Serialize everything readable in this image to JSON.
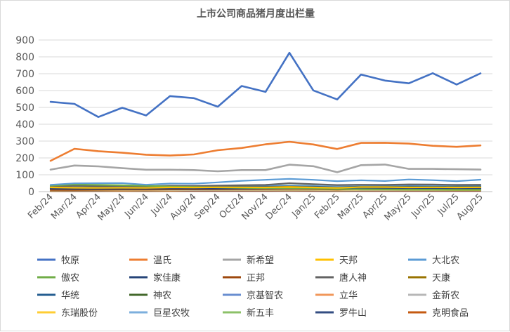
{
  "chart_data": {
    "type": "line",
    "title": "上市公司商品猪月度出栏量",
    "xlabel": "",
    "ylabel": "",
    "ylim": [
      0,
      900
    ],
    "yticks": [
      0,
      100,
      200,
      300,
      400,
      500,
      600,
      700,
      800,
      900
    ],
    "grid": "horizontal",
    "legend_position": "bottom",
    "categories": [
      "Feb/24",
      "Mar/24",
      "Apr/24",
      "May/24",
      "Jun/24",
      "Jul/24",
      "Aug/24",
      "Sep/24",
      "Oct/24",
      "Nov/24",
      "Dec/24",
      "Jan/25",
      "Feb/25",
      "Mar/25",
      "Apr/25",
      "May/25",
      "Jun/25",
      "Jul/25",
      "Aug/25"
    ],
    "series": [
      {
        "name": "牧原",
        "color": "#4472C4",
        "values": [
          533,
          521,
          443,
          498,
          452,
          567,
          555,
          504,
          627,
          592,
          824,
          601,
          547,
          695,
          659,
          643,
          703,
          636,
          702
        ]
      },
      {
        "name": "温氏",
        "color": "#ED7D31",
        "values": [
          183,
          254,
          240,
          231,
          219,
          214,
          221,
          246,
          259,
          281,
          296,
          280,
          253,
          289,
          290,
          285,
          272,
          266,
          274
        ]
      },
      {
        "name": "新希望",
        "color": "#A5A5A5",
        "values": [
          131,
          155,
          150,
          139,
          130,
          130,
          128,
          121,
          128,
          128,
          160,
          151,
          115,
          157,
          161,
          135,
          135,
          133,
          131
        ]
      },
      {
        "name": "天邦",
        "color": "#FFC000",
        "values": [
          25,
          23,
          22,
          23,
          22,
          25,
          24,
          26,
          26,
          25,
          27,
          25,
          22,
          27,
          27,
          25,
          26,
          25,
          26
        ]
      },
      {
        "name": "大北农",
        "color": "#5B9BD5",
        "values": [
          40,
          49,
          50,
          51,
          41,
          48,
          47,
          55,
          64,
          70,
          76,
          70,
          62,
          67,
          63,
          72,
          68,
          62,
          71
        ]
      },
      {
        "name": "傲农",
        "color": "#70AD47",
        "values": [
          36,
          42,
          40,
          38,
          35,
          30,
          28,
          25,
          22,
          20,
          20,
          18,
          15,
          14,
          13,
          12,
          12,
          11,
          11
        ]
      },
      {
        "name": "家佳康",
        "color": "#264478",
        "values": [
          17,
          16,
          16,
          17,
          17,
          18,
          18,
          17,
          18,
          19,
          20,
          20,
          17,
          19,
          18,
          19,
          19,
          18,
          18
        ]
      },
      {
        "name": "正邦",
        "color": "#9E480E",
        "values": [
          10,
          10,
          11,
          12,
          12,
          13,
          13,
          14,
          15,
          15,
          17,
          15,
          12,
          16,
          16,
          16,
          17,
          16,
          17
        ]
      },
      {
        "name": "唐人神",
        "color": "#636363",
        "values": [
          28,
          35,
          33,
          35,
          32,
          35,
          34,
          36,
          38,
          40,
          50,
          44,
          39,
          41,
          40,
          43,
          42,
          40,
          41
        ]
      },
      {
        "name": "天康",
        "color": "#997300",
        "values": [
          20,
          22,
          21,
          22,
          21,
          22,
          22,
          23,
          24,
          25,
          29,
          24,
          21,
          24,
          24,
          25,
          24,
          23,
          24
        ]
      },
      {
        "name": "华统",
        "color": "#255E91",
        "values": [
          22,
          24,
          25,
          26,
          24,
          26,
          27,
          28,
          29,
          30,
          31,
          30,
          26,
          30,
          30,
          31,
          30,
          30,
          31
        ]
      },
      {
        "name": "神农",
        "color": "#43682B",
        "values": [
          17,
          19,
          18,
          19,
          18,
          20,
          20,
          21,
          21,
          22,
          23,
          22,
          19,
          22,
          22,
          23,
          23,
          22,
          23
        ]
      },
      {
        "name": "京基智农",
        "color": "#698ED0",
        "values": [
          14,
          15,
          16,
          16,
          15,
          16,
          16,
          17,
          17,
          17,
          18,
          17,
          15,
          17,
          17,
          17,
          17,
          16,
          17
        ]
      },
      {
        "name": "立华",
        "color": "#F1975A",
        "values": [
          11,
          12,
          12,
          13,
          12,
          13,
          13,
          13,
          14,
          14,
          15,
          14,
          12,
          14,
          14,
          14,
          14,
          14,
          14
        ]
      },
      {
        "name": "金新农",
        "color": "#B7B7B7",
        "values": [
          9,
          10,
          10,
          10,
          10,
          10,
          10,
          11,
          11,
          11,
          12,
          11,
          10,
          11,
          11,
          11,
          11,
          11,
          11
        ]
      },
      {
        "name": "东瑞股份",
        "color": "#FFCD33",
        "values": [
          7,
          8,
          8,
          8,
          8,
          8,
          9,
          9,
          9,
          9,
          10,
          9,
          8,
          9,
          9,
          9,
          9,
          9,
          9
        ]
      },
      {
        "name": "巨星农牧",
        "color": "#7CAFDD",
        "values": [
          29,
          31,
          30,
          31,
          30,
          32,
          32,
          33,
          33,
          34,
          36,
          34,
          31,
          35,
          35,
          36,
          36,
          35,
          36
        ]
      },
      {
        "name": "新五丰",
        "color": "#8CC168",
        "values": [
          30,
          32,
          31,
          32,
          31,
          33,
          33,
          33,
          34,
          35,
          37,
          35,
          32,
          35,
          36,
          36,
          36,
          35,
          36
        ]
      },
      {
        "name": "罗牛山",
        "color": "#334D82",
        "values": [
          6,
          6,
          6,
          7,
          6,
          7,
          7,
          7,
          7,
          7,
          8,
          7,
          6,
          7,
          7,
          7,
          7,
          7,
          7
        ]
      },
      {
        "name": "克明食品",
        "color": "#C55A11",
        "values": [
          3,
          3,
          3,
          4,
          3,
          4,
          4,
          4,
          4,
          4,
          5,
          4,
          3,
          4,
          4,
          4,
          4,
          4,
          4
        ]
      }
    ]
  }
}
